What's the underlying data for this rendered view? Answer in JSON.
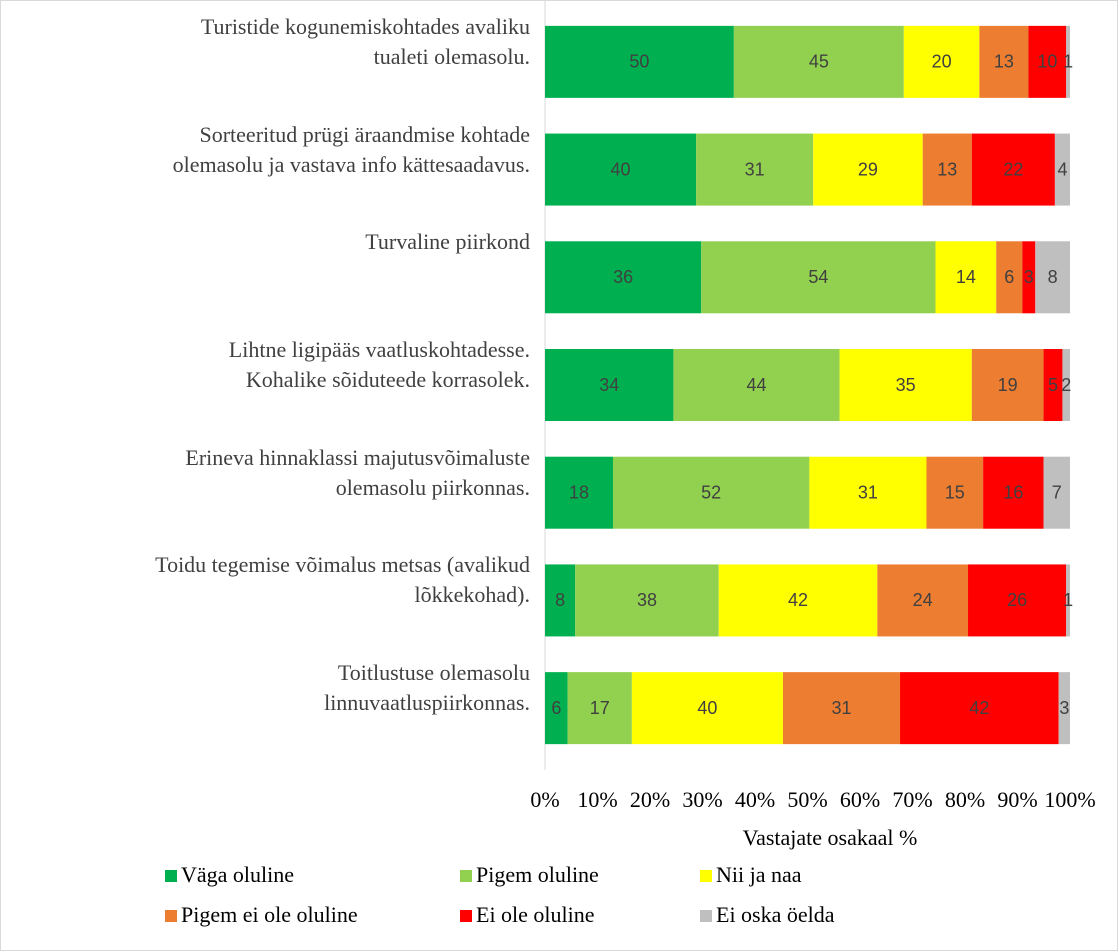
{
  "chart_data": {
    "type": "bar",
    "orientation": "horizontal",
    "stacking": "percent",
    "categories": [
      "Turistide kogunemiskohtades avaliku\ntualeti olemasolu.",
      "Sorteeritud prügi äraandmise kohtade\nolemasolu ja vastava info kättesaadavus.",
      "Turvaline piirkond",
      "Lihtne ligipääs vaatluskohtadesse.\nKohalike sõiduteede korrasolek.",
      "Erineva hinnaklassi majutusvõimaluste\nolemasolu piirkonnas.",
      "Toidu tegemise võimalus metsas (avalikud\nlõkkekohad).",
      "Toitlustuse olemasolu\nlinnuvaatluspiirkonnas."
    ],
    "series": [
      {
        "name": "Väga oluline",
        "color": "#00B050",
        "values": [
          50,
          40,
          36,
          34,
          18,
          8,
          6
        ]
      },
      {
        "name": "Pigem oluline",
        "color": "#92D050",
        "values": [
          45,
          31,
          54,
          44,
          52,
          38,
          17
        ]
      },
      {
        "name": "Nii ja naa",
        "color": "#FFFF00",
        "values": [
          20,
          29,
          14,
          35,
          31,
          42,
          40
        ]
      },
      {
        "name": "Pigem ei ole oluline",
        "color": "#ED7D31",
        "values": [
          13,
          13,
          6,
          19,
          15,
          24,
          31
        ]
      },
      {
        "name": "Ei ole oluline",
        "color": "#FF0000",
        "values": [
          10,
          22,
          3,
          5,
          16,
          26,
          42
        ]
      },
      {
        "name": "Ei oska öelda",
        "color": "#BFBFBF",
        "values": [
          1,
          4,
          8,
          2,
          7,
          1,
          3
        ]
      }
    ],
    "xlabel": "Vastajate osakaal %",
    "xlim": [
      0,
      100
    ],
    "xticks": [
      {
        "value": 0,
        "label": "0%"
      },
      {
        "value": 10,
        "label": "10%"
      },
      {
        "value": 20,
        "label": "20%"
      },
      {
        "value": 30,
        "label": "30%"
      },
      {
        "value": 40,
        "label": "40%"
      },
      {
        "value": 50,
        "label": "50%"
      },
      {
        "value": 60,
        "label": "60%"
      },
      {
        "value": 70,
        "label": "70%"
      },
      {
        "value": 80,
        "label": "80%"
      },
      {
        "value": 90,
        "label": "90%"
      },
      {
        "value": 100,
        "label": "100%"
      }
    ],
    "legend": "bottom"
  }
}
